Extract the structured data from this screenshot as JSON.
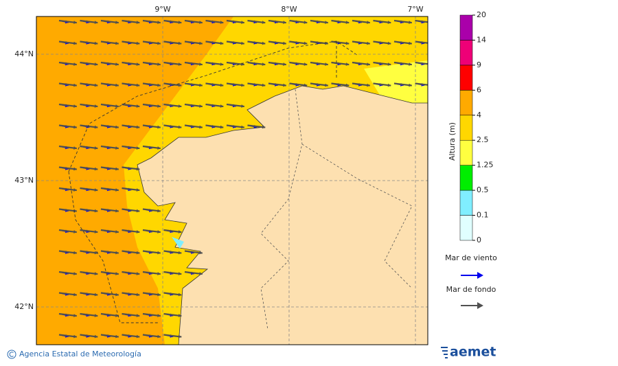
{
  "map": {
    "lon_labels": [
      "9°W",
      "8°W",
      "7°W"
    ],
    "lat_labels": [
      "44°N",
      "43°N",
      "42°N"
    ]
  },
  "colorbar": {
    "label": "Altura (m)",
    "ticks": [
      "0",
      "0.1",
      "0.5",
      "1.25",
      "2.5",
      "4",
      "6",
      "9",
      "14",
      "20"
    ],
    "colors": [
      "#e0ffff",
      "#80eeff",
      "#00ee00",
      "#ffff40",
      "#ffd700",
      "#ffaa00",
      "#ff0000",
      "#ee0077",
      "#aa00aa"
    ]
  },
  "legend": [
    {
      "label": "Mar de viento",
      "color": "#0000ee"
    },
    {
      "label": "Mar de fondo",
      "color": "#505050"
    }
  ],
  "footer": {
    "credit": "Agencia Estatal de Meteorología",
    "logo": "aemet"
  }
}
